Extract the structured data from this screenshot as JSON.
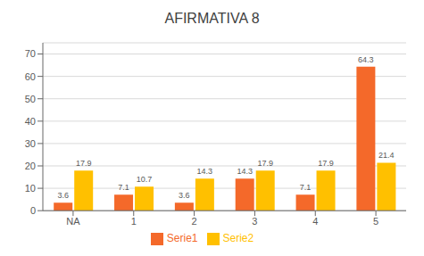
{
  "chart_data": {
    "type": "bar",
    "title": "AFIRMATIVA 8",
    "categories": [
      "NA",
      "1",
      "2",
      "3",
      "4",
      "5"
    ],
    "series": [
      {
        "name": "Serie1",
        "color": "#F4692A",
        "values": [
          3.6,
          7.1,
          3.6,
          14.3,
          7.1,
          64.3
        ]
      },
      {
        "name": "Serie2",
        "color": "#FFC000",
        "values": [
          17.9,
          10.7,
          14.3,
          17.9,
          17.9,
          21.4
        ]
      }
    ],
    "ylim": [
      0,
      75
    ],
    "yticks": [
      0,
      10,
      20,
      30,
      40,
      50,
      60,
      70
    ],
    "grid": true,
    "legend": "bottom",
    "data_labels": true
  }
}
